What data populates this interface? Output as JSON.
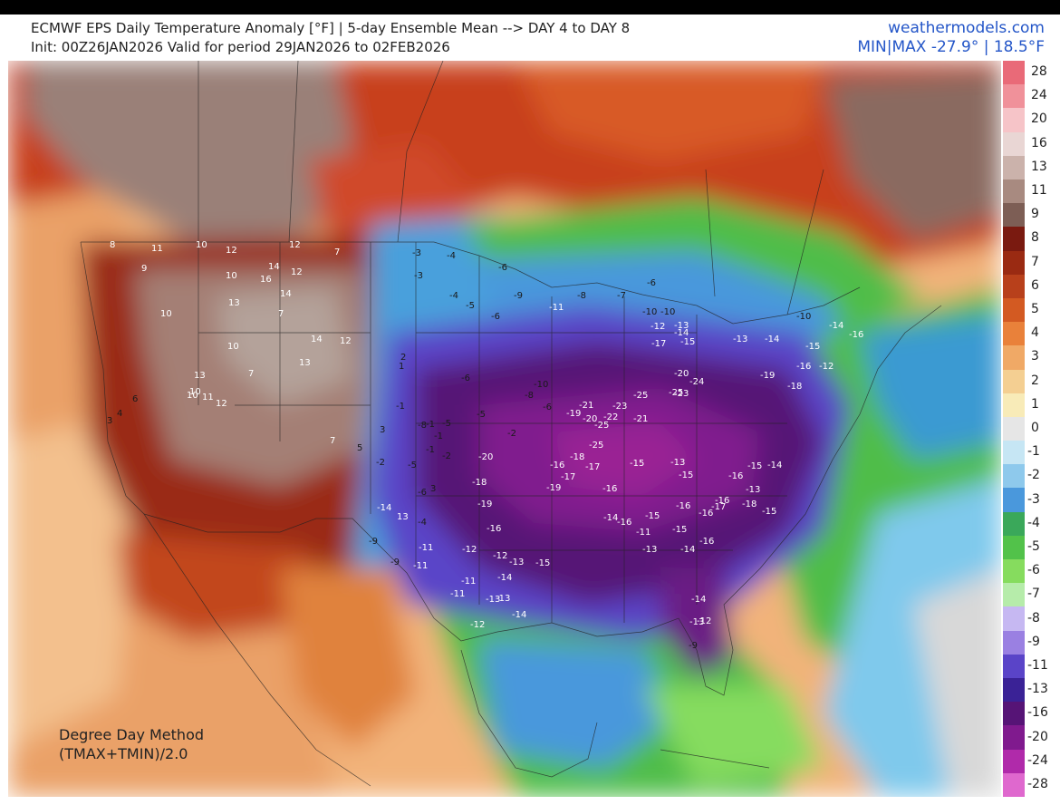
{
  "header": {
    "title": "ECMWF EPS Daily Temperature Anomaly [°F] | 5-day Ensemble Mean --> DAY 4 to DAY 8",
    "subtitle": "Init: 00Z26JAN2026 Valid for period 29JAN2026 to 02FEB2026",
    "site": "weathermodels.com",
    "minmax": "MIN|MAX -27.9° | 18.5°F"
  },
  "legend": {
    "ticks": [
      "28",
      "24",
      "20",
      "16",
      "13",
      "11",
      "9",
      "8",
      "7",
      "6",
      "5",
      "4",
      "3",
      "2",
      "1",
      "0",
      "-1",
      "-2",
      "-3",
      "-4",
      "-5",
      "-6",
      "-7",
      "-8",
      "-9",
      "-11",
      "-13",
      "-16",
      "-20",
      "-24",
      "-28"
    ],
    "colors": [
      "#e96a78",
      "#f0919a",
      "#f6c4c8",
      "#e9d6d4",
      "#cbb2ab",
      "#a88a80",
      "#7d5e55",
      "#7a1a10",
      "#9a2a12",
      "#b8401b",
      "#d35a22",
      "#e9813a",
      "#f0a966",
      "#f4cf92",
      "#f8ebb8",
      "#e6e6e6",
      "#c6e6f4",
      "#8ec9ec",
      "#4a98dc",
      "#3aa85a",
      "#52c24a",
      "#86dc5e",
      "#b6ecaa",
      "#c6b8f2",
      "#9a80e2",
      "#5a44c8",
      "#3a2296",
      "#561476",
      "#801a8e",
      "#b02aaa",
      "#df68ce"
    ]
  },
  "method": {
    "line1": "Degree Day Method",
    "line2": "(TMAX+TMIN)/2.0"
  },
  "map_labels": [
    {
      "t": "8"
    },
    {
      "t": "11"
    },
    {
      "t": "10"
    },
    {
      "t": "12"
    },
    {
      "t": "12"
    },
    {
      "t": "7"
    },
    {
      "t": "9"
    },
    {
      "t": "14"
    },
    {
      "t": "16"
    },
    {
      "t": "12"
    },
    {
      "t": "10"
    },
    {
      "t": "13"
    },
    {
      "t": "14"
    },
    {
      "t": "7"
    },
    {
      "t": "10"
    },
    {
      "t": "14"
    },
    {
      "t": "12"
    },
    {
      "t": "13"
    },
    {
      "t": "10"
    },
    {
      "t": "10"
    },
    {
      "t": "13"
    },
    {
      "t": "10"
    },
    {
      "t": "11"
    },
    {
      "t": "12"
    },
    {
      "t": "7"
    },
    {
      "t": "6"
    },
    {
      "t": "4"
    },
    {
      "t": "3"
    },
    {
      "t": "7"
    },
    {
      "t": "5"
    },
    {
      "t": "3"
    },
    {
      "t": "-3"
    },
    {
      "t": "-4"
    },
    {
      "t": "-6"
    },
    {
      "t": "-3"
    },
    {
      "t": "-4"
    },
    {
      "t": "-5"
    },
    {
      "t": "-6"
    },
    {
      "t": "-9"
    },
    {
      "t": "-11"
    },
    {
      "t": "-8"
    },
    {
      "t": "-7"
    },
    {
      "t": "-6"
    },
    {
      "t": "-10"
    },
    {
      "t": "-10"
    },
    {
      "t": "-13"
    },
    {
      "t": "-12"
    },
    {
      "t": "-14"
    },
    {
      "t": "-17"
    },
    {
      "t": "-15"
    },
    {
      "t": "-13"
    },
    {
      "t": "-14"
    },
    {
      "t": "-15"
    },
    {
      "t": "-16"
    },
    {
      "t": "-12"
    },
    {
      "t": "-10"
    },
    {
      "t": "-14"
    },
    {
      "t": "-16"
    },
    {
      "t": "-18"
    },
    {
      "t": "-19"
    },
    {
      "t": "-20"
    },
    {
      "t": "-24"
    },
    {
      "t": "-23"
    },
    {
      "t": "-25"
    },
    {
      "t": "-25"
    },
    {
      "t": "-21"
    },
    {
      "t": "-22"
    },
    {
      "t": "-20"
    },
    {
      "t": "-19"
    },
    {
      "t": "-21"
    },
    {
      "t": "-23"
    },
    {
      "t": "-25"
    },
    {
      "t": "-25"
    },
    {
      "t": "-18"
    },
    {
      "t": "-16"
    },
    {
      "t": "-17"
    },
    {
      "t": "-15"
    },
    {
      "t": "-13"
    },
    {
      "t": "-15"
    },
    {
      "t": "-16"
    },
    {
      "t": "-15"
    },
    {
      "t": "-14"
    },
    {
      "t": "-13"
    },
    {
      "t": "-16"
    },
    {
      "t": "-16"
    },
    {
      "t": "-15"
    },
    {
      "t": "-16"
    },
    {
      "t": "-14"
    },
    {
      "t": "-13"
    },
    {
      "t": "-11"
    },
    {
      "t": "-12"
    },
    {
      "t": "-9"
    },
    {
      "t": "-11"
    },
    {
      "t": "-13"
    },
    {
      "t": "-15"
    },
    {
      "t": "-19"
    },
    {
      "t": "-18"
    },
    {
      "t": "-20"
    },
    {
      "t": "-19"
    },
    {
      "t": "-17"
    },
    {
      "t": "-16"
    },
    {
      "t": "-14"
    },
    {
      "t": "-16"
    },
    {
      "t": "-15"
    },
    {
      "t": "-16"
    },
    {
      "t": "-17"
    },
    {
      "t": "-18"
    },
    {
      "t": "-15"
    },
    {
      "t": "-14"
    },
    {
      "t": "-13"
    },
    {
      "t": "-12"
    },
    {
      "t": "-9"
    },
    {
      "t": "-11"
    },
    {
      "t": "-11"
    },
    {
      "t": "-14"
    },
    {
      "t": "13"
    },
    {
      "t": "-9"
    },
    {
      "t": "-8"
    },
    {
      "t": "-2"
    },
    {
      "t": "-4"
    },
    {
      "t": "-6"
    },
    {
      "t": "-1"
    },
    {
      "t": "1"
    },
    {
      "t": "2"
    },
    {
      "t": "-5"
    },
    {
      "t": "-1"
    },
    {
      "t": "3"
    },
    {
      "t": "-16"
    },
    {
      "t": "-12"
    },
    {
      "t": "-14"
    },
    {
      "t": "-13"
    },
    {
      "t": "-11"
    },
    {
      "t": "-12"
    },
    {
      "t": "-13"
    },
    {
      "t": "-14"
    },
    {
      "t": "-10"
    },
    {
      "t": "-8"
    },
    {
      "t": "-6"
    },
    {
      "t": "-2"
    },
    {
      "t": "-5"
    },
    {
      "t": "-5"
    },
    {
      "t": "-2"
    },
    {
      "t": "-1"
    },
    {
      "t": "-1"
    },
    {
      "t": "-6"
    }
  ]
}
